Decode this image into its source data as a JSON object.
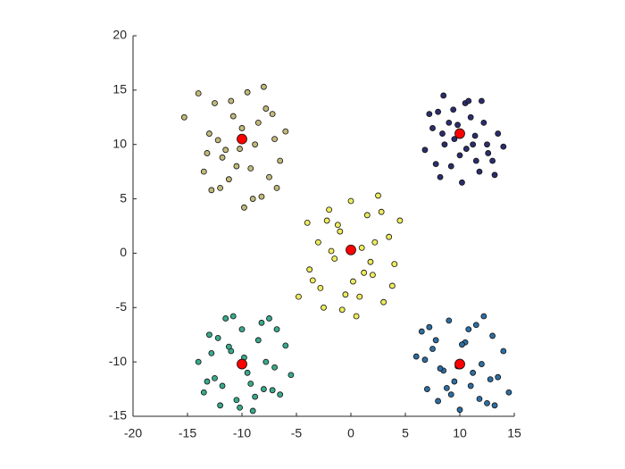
{
  "chart_data": {
    "type": "scatter",
    "xlim": [
      -20,
      15
    ],
    "xticks": [
      -20,
      -15,
      -10,
      -5,
      0,
      5,
      10,
      15
    ],
    "ylim": [
      -15,
      20
    ],
    "yticks": [
      -15,
      -10,
      -5,
      0,
      5,
      10,
      15,
      20
    ],
    "grid": false,
    "series": [
      {
        "color": "#2c2d6c",
        "marker_size": 3,
        "x": [
          7.5,
          8,
          8.5,
          9,
          9.5,
          10,
          10.5,
          11,
          11.5,
          12,
          12.5,
          13,
          13.5,
          14,
          6.8,
          7.2,
          8.2,
          9.2,
          10.2,
          11.2,
          12.2,
          8.6,
          9.8,
          11.8,
          10.8,
          7.8,
          13.2,
          9.4,
          10.6,
          8.4,
          12.6,
          11.4
        ],
        "values": [
          11.5,
          13,
          14.5,
          12,
          10.5,
          9,
          13.8,
          12.5,
          8.5,
          14,
          10,
          8.5,
          11,
          9.8,
          9.5,
          12.8,
          7,
          8,
          6.5,
          10,
          12,
          10,
          11.8,
          7.5,
          14,
          8.2,
          7.2,
          13.2,
          9.6,
          11,
          9.2,
          10.8
        ]
      },
      {
        "color": "#c1b97c",
        "marker_size": 3,
        "x": [
          -15.3,
          -14,
          -13.5,
          -13,
          -12.5,
          -12,
          -11.5,
          -11,
          -10.5,
          -10,
          -9.5,
          -9,
          -8.5,
          -8,
          -7.5,
          -7,
          -6.5,
          -6,
          -12.8,
          -11.8,
          -10.8,
          -9.8,
          -8.8,
          -7.8,
          -13.2,
          -11.2,
          -9.2,
          -7.2,
          -10.2,
          -8.2,
          -12.2,
          -6.8
        ],
        "values": [
          12.5,
          14.7,
          7.5,
          11,
          13.8,
          6,
          9.5,
          14,
          8,
          11.5,
          14.8,
          5,
          12,
          15.3,
          7,
          10.5,
          8.5,
          11.2,
          5.8,
          8.8,
          12.6,
          4.2,
          10,
          13.3,
          9.2,
          6.8,
          7.8,
          12.8,
          9.6,
          5.2,
          10.4,
          6
        ]
      },
      {
        "color": "#eeec5c",
        "marker_size": 3,
        "x": [
          -4.8,
          -4,
          -3.5,
          -3,
          -2.5,
          -2,
          -1.5,
          -1,
          -0.5,
          0,
          0.5,
          1,
          1.5,
          2,
          2.5,
          3,
          3.5,
          4,
          4.5,
          -3.8,
          -2.8,
          -1.8,
          -0.8,
          0.8,
          1.8,
          2.8,
          3.8,
          -1.2,
          1.2,
          -2.2,
          2.2,
          0.2
        ],
        "values": [
          -4,
          2.8,
          -2.5,
          1,
          -5,
          4,
          -0.5,
          2,
          -3.8,
          4.8,
          -5.8,
          0.5,
          3.5,
          -2,
          5.3,
          -4.5,
          1.5,
          -1,
          3,
          -1.5,
          -3.2,
          0.2,
          -5.2,
          -4,
          -0.8,
          3.8,
          -3,
          2.6,
          -1.8,
          3,
          1,
          -2.6
        ]
      },
      {
        "color": "#3aa98c",
        "marker_size": 3,
        "x": [
          -14,
          -13.5,
          -13,
          -12.5,
          -12,
          -11.5,
          -11,
          -10.5,
          -10,
          -9.5,
          -9,
          -8.5,
          -8,
          -7.5,
          -7,
          -6.5,
          -6,
          -5.5,
          -12.8,
          -11.8,
          -10.8,
          -9.8,
          -8.8,
          -7.8,
          -6.8,
          -13.2,
          -11.2,
          -9.2,
          -10.2,
          -8.2,
          -12.2,
          -7.2
        ],
        "values": [
          -10,
          -12.8,
          -7.5,
          -11.5,
          -14,
          -6,
          -9,
          -13.5,
          -7,
          -11,
          -14.5,
          -8,
          -12.5,
          -6,
          -10.5,
          -13,
          -8.5,
          -11.2,
          -9.2,
          -12.2,
          -5.8,
          -9.6,
          -13.2,
          -10,
          -7,
          -11.8,
          -8.6,
          -12,
          -14.2,
          -6.4,
          -7.8,
          -12.6
        ]
      },
      {
        "color": "#2e6ea2",
        "marker_size": 3,
        "x": [
          6,
          6.5,
          7,
          7.5,
          8,
          8.5,
          9,
          9.5,
          10,
          10.5,
          11,
          11.5,
          12,
          12.5,
          13,
          13.5,
          14,
          14.5,
          7.2,
          8.2,
          9.2,
          10.2,
          11.2,
          12.2,
          13.2,
          6.8,
          8.8,
          10.8,
          9.8,
          11.8,
          7.8,
          12.8
        ],
        "values": [
          -9.5,
          -7.2,
          -12.5,
          -8.8,
          -13.6,
          -10.8,
          -6.2,
          -11.8,
          -14.4,
          -8.2,
          -12.2,
          -6.6,
          -10.2,
          -13.8,
          -7.6,
          -11.4,
          -9,
          -12.8,
          -6.8,
          -10.6,
          -13,
          -8.4,
          -11,
          -5.8,
          -14,
          -9.8,
          -12.4,
          -7,
          -10.4,
          -13.4,
          -8,
          -11.6
        ]
      },
      {
        "color": "#ff0000",
        "marker_size": 5.5,
        "x": [
          10,
          10,
          -10,
          -10,
          0
        ],
        "values": [
          11,
          -10.2,
          -10.2,
          10.5,
          0.3
        ]
      }
    ]
  }
}
